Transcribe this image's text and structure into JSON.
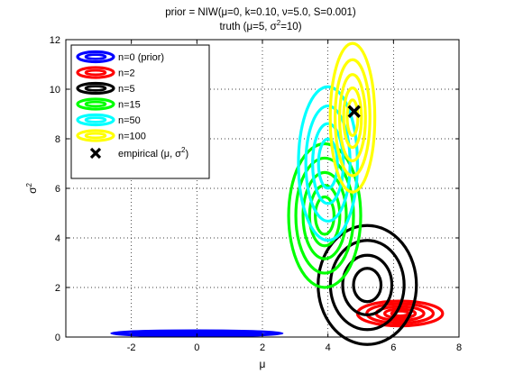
{
  "chart_data": {
    "type": "contour",
    "title_line1": "prior = NIW(μ=0, k=0.10, ν=5.0, S=0.001)",
    "title_line2_prefix": "truth (μ=5, σ",
    "title_line2_sup": "2",
    "title_line2_suffix": "=10)",
    "xlabel": "μ",
    "ylabel_base": "σ",
    "ylabel_sup": "2",
    "xlim": [
      -4,
      8
    ],
    "ylim": [
      0,
      12
    ],
    "xticks": [
      "-2",
      "0",
      "2",
      "4",
      "6",
      "8"
    ],
    "yticks": [
      "0",
      "2",
      "4",
      "6",
      "8",
      "10",
      "12"
    ],
    "grid": "dotted",
    "legend_placement": "top-left",
    "series": [
      {
        "name": "n=0 (prior)",
        "color": "#0000ff",
        "center": [
          0,
          0.15
        ],
        "radius": [
          2.6,
          0.1
        ],
        "levels": [
          1.0,
          0.75,
          0.5
        ]
      },
      {
        "name": "n=2",
        "color": "#ff0000",
        "center": [
          6.2,
          0.95
        ],
        "radius": [
          1.3,
          0.5
        ],
        "levels": [
          1.0,
          0.78,
          0.56,
          0.36,
          0.2
        ]
      },
      {
        "name": "n=5",
        "color": "#000000",
        "center": [
          5.2,
          2.1
        ],
        "radius": [
          1.5,
          2.4
        ],
        "levels": [
          1.0,
          0.75,
          0.5,
          0.28
        ]
      },
      {
        "name": "n=15",
        "color": "#00ff00",
        "center": [
          3.9,
          4.9
        ],
        "radius": [
          1.1,
          2.9
        ],
        "levels": [
          1.0,
          0.8,
          0.6,
          0.42,
          0.26
        ]
      },
      {
        "name": "n=50",
        "color": "#00ffff",
        "center": [
          4.0,
          7.0
        ],
        "radius": [
          0.9,
          3.1
        ],
        "levels": [
          1.0,
          0.75,
          0.52,
          0.32
        ]
      },
      {
        "name": "n=100",
        "color": "#ffff00",
        "center": [
          4.75,
          8.85
        ],
        "radius": [
          0.68,
          3.0
        ],
        "levels": [
          1.0,
          0.78,
          0.58,
          0.4,
          0.24
        ]
      }
    ],
    "empirical": {
      "label_prefix": "empirical (μ, σ",
      "label_sup": "2",
      "label_suffix": ")",
      "x": 4.8,
      "y": 9.1,
      "color": "#000000"
    }
  }
}
